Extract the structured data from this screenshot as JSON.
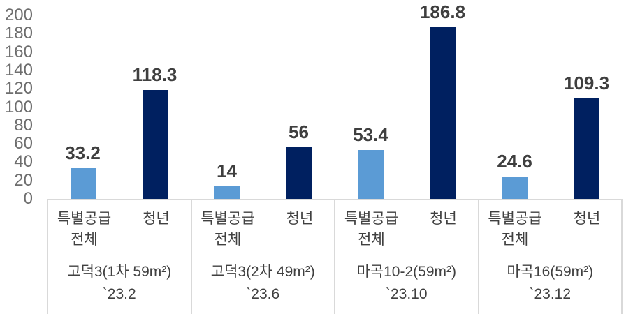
{
  "chart_data": {
    "type": "bar",
    "title": "",
    "ylim": [
      0,
      200
    ],
    "ytick_step": 20,
    "yticks": [
      200,
      180,
      160,
      140,
      120,
      100,
      80,
      60,
      40,
      20,
      0
    ],
    "grid": false,
    "legend": "none",
    "groups": [
      {
        "label": "고덕3(1차 59m²)",
        "period": "`23.2"
      },
      {
        "label": "고덕3(2차 49m²)",
        "period": "`23.6"
      },
      {
        "label": "마곡10-2(59m²)",
        "period": "`23.10"
      },
      {
        "label": "마곡16(59m²)",
        "period": "`23.12"
      }
    ],
    "series": [
      {
        "name": "특별공급 전체",
        "axis_label": "특별공급\n전체",
        "color": "#5b9bd5",
        "values": [
          33.2,
          14,
          53.4,
          24.6
        ],
        "value_labels": [
          "33.2",
          "14",
          "53.4",
          "24.6"
        ]
      },
      {
        "name": "청년",
        "axis_label": "청년",
        "color": "#002060",
        "values": [
          118.3,
          56,
          186.8,
          109.3
        ],
        "value_labels": [
          "118.3",
          "56",
          "186.8",
          "109.3"
        ]
      }
    ],
    "colors": {
      "bar_light": "#5b9bd5",
      "bar_dark": "#002060",
      "value_label": "#3f3f3f",
      "tick_label": "#6e6e6e",
      "category_label": "#404040",
      "axis_line": "#d9d9d9",
      "background": "#ffffff"
    }
  }
}
